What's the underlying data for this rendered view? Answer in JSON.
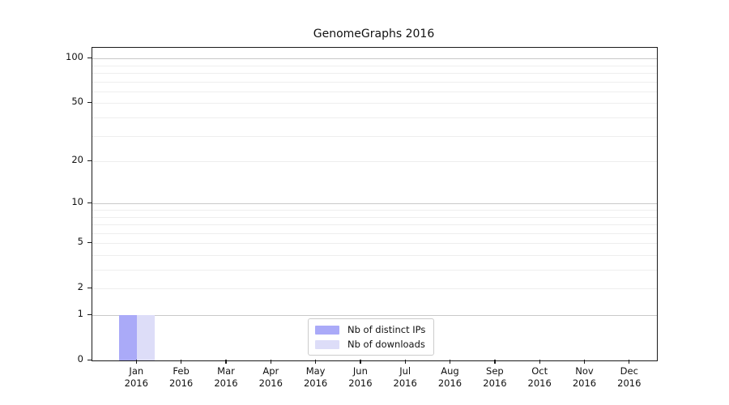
{
  "chart_data": {
    "type": "bar",
    "title": "GenomeGraphs 2016",
    "xlabel": "",
    "ylabel": "",
    "categories": [
      "Jan 2016",
      "Feb 2016",
      "Mar 2016",
      "Apr 2016",
      "May 2016",
      "Jun 2016",
      "Jul 2016",
      "Aug 2016",
      "Sep 2016",
      "Oct 2016",
      "Nov 2016",
      "Dec 2016"
    ],
    "series": [
      {
        "name": "Nb of distinct IPs",
        "color": "#aaaaf8",
        "values": [
          1,
          0,
          0,
          0,
          0,
          0,
          0,
          0,
          0,
          0,
          0,
          0
        ]
      },
      {
        "name": "Nb of downloads",
        "color": "#ddddf8",
        "values": [
          1,
          0,
          0,
          0,
          0,
          0,
          0,
          0,
          0,
          0,
          0,
          0
        ]
      }
    ],
    "yscale": "log1p",
    "ylim": [
      0,
      118
    ],
    "y_tick_values": [
      0,
      1,
      2,
      5,
      10,
      20,
      50,
      100
    ],
    "y_major_gridlines": [
      1,
      10,
      100
    ],
    "y_minor_gridlines": [
      2,
      3,
      4,
      5,
      6,
      7,
      8,
      9,
      20,
      30,
      40,
      50,
      60,
      70,
      80,
      90
    ],
    "grid": "horizontal",
    "legend_position": "bottom-center",
    "colors": {
      "axis": "#1a1a1a",
      "major_grid": "#c9c9c9",
      "minor_grid": "#eeeeee",
      "text": "#111111",
      "background": "#ffffff"
    }
  }
}
